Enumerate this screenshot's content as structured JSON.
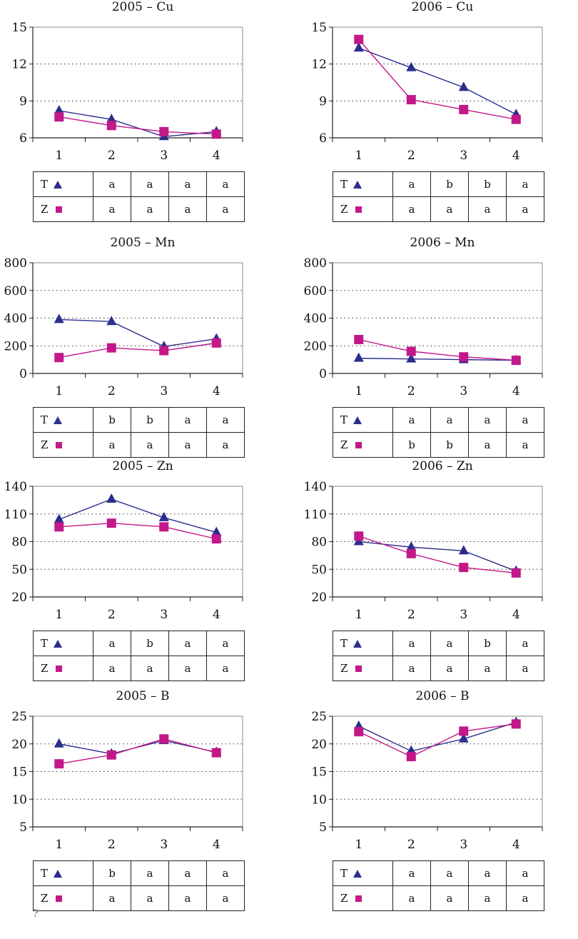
{
  "colors": {
    "T": "#2b2e8c",
    "Z": "#c2188a"
  },
  "chart_data": [
    {
      "type": "line",
      "title": "2005 – Cu",
      "categories": [
        "1",
        "2",
        "3",
        "4"
      ],
      "yticks": [
        6,
        9,
        12,
        15
      ],
      "ylim": [
        6,
        15
      ],
      "grid": "dotted horizontal",
      "series": [
        {
          "name": "T",
          "values": [
            8.2,
            7.5,
            6.1,
            6.5
          ]
        },
        {
          "name": "Z",
          "values": [
            7.7,
            7.0,
            6.5,
            6.3
          ]
        }
      ],
      "significance": {
        "T": [
          "a",
          "a",
          "a",
          "a"
        ],
        "Z": [
          "a",
          "a",
          "a",
          "a"
        ]
      }
    },
    {
      "type": "line",
      "title": "2006 – Cu",
      "categories": [
        "1",
        "2",
        "3",
        "4"
      ],
      "yticks": [
        6,
        9,
        12,
        15
      ],
      "ylim": [
        6,
        15
      ],
      "grid": "dotted horizontal",
      "series": [
        {
          "name": "T",
          "values": [
            13.3,
            11.7,
            10.1,
            7.9
          ]
        },
        {
          "name": "Z",
          "values": [
            14.0,
            9.1,
            8.3,
            7.5
          ]
        }
      ],
      "significance": {
        "T": [
          "a",
          "b",
          "b",
          "a"
        ],
        "Z": [
          "a",
          "a",
          "a",
          "a"
        ]
      }
    },
    {
      "type": "line",
      "title": "2005 – Mn",
      "categories": [
        "1",
        "2",
        "3",
        "4"
      ],
      "yticks": [
        0,
        200,
        400,
        600,
        800
      ],
      "ylim": [
        0,
        800
      ],
      "grid": "dotted horizontal",
      "series": [
        {
          "name": "T",
          "values": [
            390,
            375,
            195,
            250
          ]
        },
        {
          "name": "Z",
          "values": [
            115,
            185,
            165,
            220
          ]
        }
      ],
      "significance": {
        "T": [
          "b",
          "b",
          "a",
          "a"
        ],
        "Z": [
          "a",
          "a",
          "a",
          "a"
        ]
      }
    },
    {
      "type": "line",
      "title": "2006 – Mn",
      "categories": [
        "1",
        "2",
        "3",
        "4"
      ],
      "yticks": [
        0,
        200,
        400,
        600,
        800
      ],
      "ylim": [
        0,
        800
      ],
      "grid": "dotted horizontal",
      "series": [
        {
          "name": "T",
          "values": [
            110,
            105,
            100,
            95
          ]
        },
        {
          "name": "Z",
          "values": [
            245,
            160,
            120,
            95
          ]
        }
      ],
      "significance": {
        "T": [
          "a",
          "a",
          "a",
          "a"
        ],
        "Z": [
          "b",
          "b",
          "a",
          "a"
        ]
      }
    },
    {
      "type": "line",
      "title": "2005 – Zn",
      "categories": [
        "1",
        "2",
        "3",
        "4"
      ],
      "yticks": [
        20,
        50,
        80,
        110,
        140
      ],
      "ylim": [
        20,
        140
      ],
      "grid": "dotted horizontal",
      "series": [
        {
          "name": "T",
          "values": [
            104,
            126,
            106,
            90
          ]
        },
        {
          "name": "Z",
          "values": [
            96,
            100,
            96,
            83
          ]
        }
      ],
      "significance": {
        "T": [
          "a",
          "b",
          "a",
          "a"
        ],
        "Z": [
          "a",
          "a",
          "a",
          "a"
        ]
      }
    },
    {
      "type": "line",
      "title": "2006 – Zn",
      "categories": [
        "1",
        "2",
        "3",
        "4"
      ],
      "yticks": [
        20,
        50,
        80,
        110,
        140
      ],
      "ylim": [
        20,
        140
      ],
      "grid": "dotted horizontal",
      "series": [
        {
          "name": "T",
          "values": [
            80,
            74,
            70,
            48
          ]
        },
        {
          "name": "Z",
          "values": [
            86,
            67,
            52,
            46
          ]
        }
      ],
      "significance": {
        "T": [
          "a",
          "a",
          "b",
          "a"
        ],
        "Z": [
          "a",
          "a",
          "a",
          "a"
        ]
      }
    },
    {
      "type": "line",
      "title": "2005 – B",
      "categories": [
        "1",
        "2",
        "3",
        "4"
      ],
      "yticks": [
        5,
        10,
        15,
        20,
        25
      ],
      "ylim": [
        5,
        25
      ],
      "grid": "dotted horizontal",
      "series": [
        {
          "name": "T",
          "values": [
            20.0,
            18.2,
            20.6,
            18.5
          ]
        },
        {
          "name": "Z",
          "values": [
            16.4,
            18.0,
            20.9,
            18.4
          ]
        }
      ],
      "significance": {
        "T": [
          "b",
          "a",
          "a",
          "a"
        ],
        "Z": [
          "a",
          "a",
          "a",
          "a"
        ]
      }
    },
    {
      "type": "line",
      "title": "2006 – B",
      "categories": [
        "1",
        "2",
        "3",
        "4"
      ],
      "yticks": [
        5,
        10,
        15,
        20,
        25
      ],
      "ylim": [
        5,
        25
      ],
      "grid": "dotted horizontal",
      "series": [
        {
          "name": "T",
          "values": [
            23.2,
            18.7,
            20.9,
            23.9
          ]
        },
        {
          "name": "Z",
          "values": [
            22.2,
            17.7,
            22.3,
            23.6
          ]
        }
      ],
      "significance": {
        "T": [
          "a",
          "a",
          "a",
          "a"
        ],
        "Z": [
          "a",
          "a",
          "a",
          "a"
        ]
      }
    }
  ],
  "stray_mark": "?"
}
